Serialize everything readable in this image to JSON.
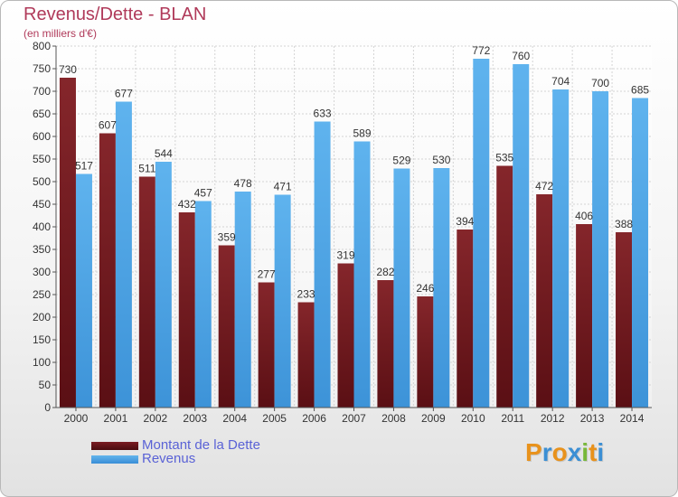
{
  "title": "Revenus/Dette - BLAN",
  "subtitle": "(en milliers d'€)",
  "colors": {
    "title": "#b03a5a",
    "debt": "#6a1418",
    "revenue": "#4aa3e6",
    "legend_text": "#5a62d6"
  },
  "legend": {
    "debt_label": "Montant de la Dette",
    "revenue_label": "Revenus"
  },
  "logo": {
    "letters": [
      {
        "char": "P",
        "color": "#e8921c"
      },
      {
        "char": "r",
        "color": "#3b8fd4"
      },
      {
        "char": "o",
        "color": "#e8921c"
      },
      {
        "char": "x",
        "color": "#3b8fd4"
      },
      {
        "char": "i",
        "color": "#78b83a"
      },
      {
        "char": "t",
        "color": "#e8921c"
      },
      {
        "char": "i",
        "color": "#3b8fd4"
      }
    ]
  },
  "chart_data": {
    "type": "bar",
    "categories": [
      "2000",
      "2001",
      "2002",
      "2003",
      "2004",
      "2005",
      "2006",
      "2007",
      "2008",
      "2009",
      "2010",
      "2011",
      "2012",
      "2013",
      "2014"
    ],
    "series": [
      {
        "name": "Montant de la Dette",
        "values": [
          730,
          607,
          511,
          432,
          359,
          277,
          233,
          319,
          282,
          246,
          394,
          535,
          472,
          406,
          388
        ]
      },
      {
        "name": "Revenus",
        "values": [
          517,
          677,
          544,
          457,
          478,
          471,
          633,
          589,
          529,
          530,
          772,
          760,
          704,
          700,
          685
        ]
      }
    ],
    "yticks": [
      0,
      50,
      100,
      150,
      200,
      250,
      300,
      350,
      400,
      450,
      500,
      550,
      600,
      650,
      700,
      750,
      800
    ],
    "ylim": [
      0,
      800
    ],
    "grid": true,
    "legend_position": "bottom-left"
  }
}
